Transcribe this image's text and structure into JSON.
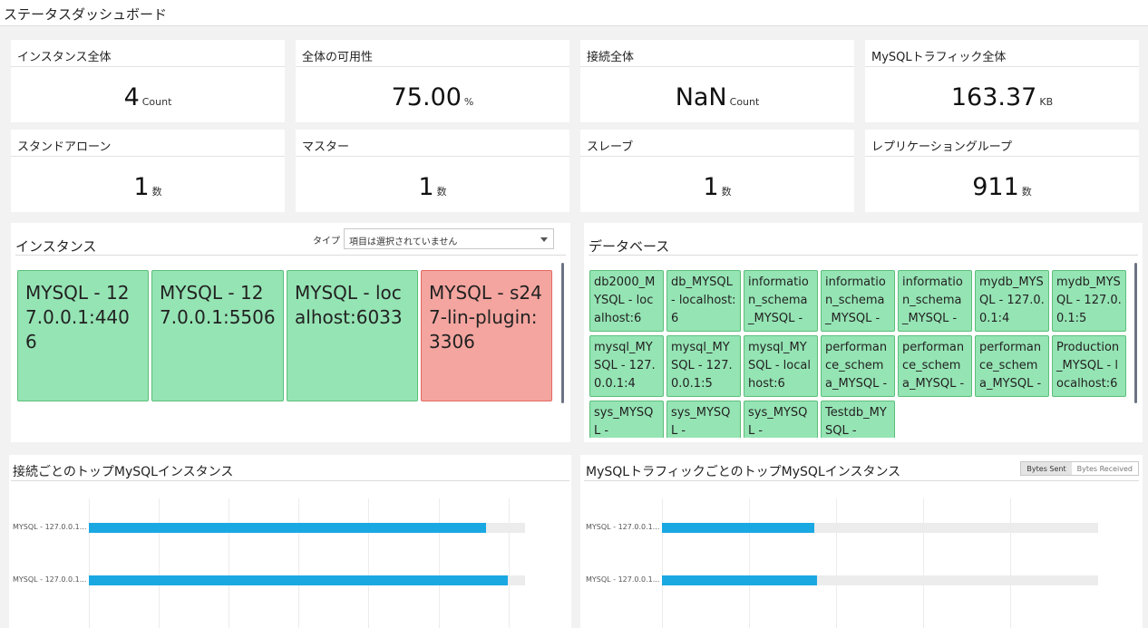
{
  "header": {
    "title": "ステータスダッシュボード"
  },
  "summary": [
    {
      "label": "インスタンス全体",
      "value": "4",
      "unit": "Count"
    },
    {
      "label": "全体の可用性",
      "value": "75.00",
      "unit": "%"
    },
    {
      "label": "接続全体",
      "value": "NaN",
      "unit": "Count"
    },
    {
      "label": "MySQLトラフィック全体",
      "value": "163.37",
      "unit": "KB"
    },
    {
      "label": "スタンドアローン",
      "value": "1",
      "unit": "数"
    },
    {
      "label": "マスター",
      "value": "1",
      "unit": "数"
    },
    {
      "label": "スレーブ",
      "value": "1",
      "unit": "数"
    },
    {
      "label": "レプリケーショングループ",
      "value": "911",
      "unit": "数"
    }
  ],
  "instances_panel": {
    "title": "インスタンス",
    "type_label": "タイプ",
    "type_select_value": "項目は選択されていません",
    "items": [
      {
        "name": "MYSQL - 127.0.0.1:4406",
        "status": "up"
      },
      {
        "name": "MYSQL - 127.0.0.1:5506",
        "status": "up"
      },
      {
        "name": "MYSQL - localhost:6033",
        "status": "up"
      },
      {
        "name": "MYSQL - s247-lin-plugin:3306",
        "status": "down"
      }
    ]
  },
  "databases_panel": {
    "title": "データベース",
    "items": [
      "db2000_MYSQL - localhost:6",
      "db_MYSQL - localhost:6",
      "information_schema_MYSQL -",
      "information_schema_MYSQL -",
      "information_schema_MYSQL -",
      "mydb_MYSQL - 127.0.0.1:4",
      "mydb_MYSQL - 127.0.0.1:5",
      "mysql_MYSQL - 127.0.0.1:4",
      "mysql_MYSQL - 127.0.0.1:5",
      "mysql_MYSQL - localhost:6",
      "performance_schema_MYSQL -",
      "performance_schema_MYSQL -",
      "performance_schema_MYSQL -",
      "Production_MYSQL - localhost:6",
      "sys_MYSQL -",
      "sys_MYSQL -",
      "sys_MYSQL -",
      "Testdb_MYSQL -"
    ]
  },
  "connections_chart": {
    "title": "接続ごとのトップMySQLインスタンス",
    "chart_data": {
      "type": "bar",
      "orientation": "horizontal",
      "categories": [
        "MYSQL - 127.0.0.1...",
        "MYSQL - 127.0.0.1..."
      ],
      "values": [
        0.91,
        0.96
      ],
      "value_scale": "fraction of track"
    }
  },
  "traffic_chart": {
    "title": "MySQLトラフィックごとのトップMySQLインスタンス",
    "toggle": {
      "sent": "Bytes Sent",
      "received": "Bytes Received",
      "active": "sent"
    },
    "chart_data": {
      "type": "bar",
      "orientation": "horizontal",
      "categories": [
        "MYSQL - 127.0.0.1...",
        "MYSQL - 127.0.0.1..."
      ],
      "values": [
        0.35,
        0.355
      ],
      "value_scale": "fraction of track"
    }
  },
  "colors": {
    "up": "#95e4b4",
    "down": "#f4a59f",
    "bar": "#1aa8e2"
  }
}
